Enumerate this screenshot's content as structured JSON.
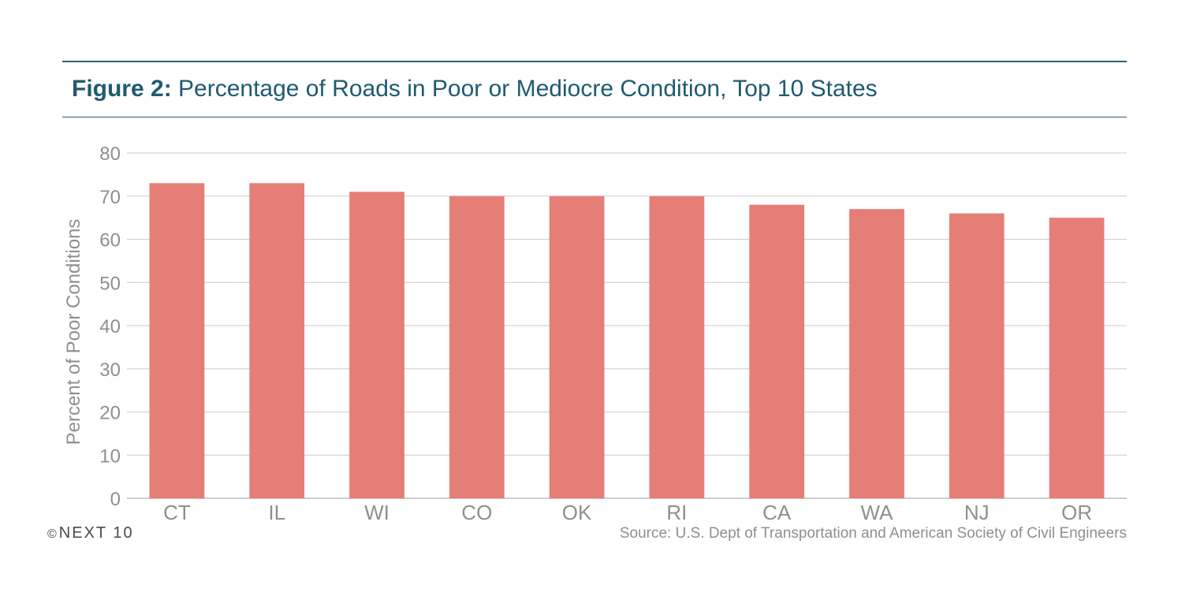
{
  "figure_label": "Figure 2:",
  "chart_data": {
    "type": "bar",
    "title": "Percentage of Roads in Poor or Mediocre Condition, Top 10 States",
    "xlabel": "",
    "ylabel": "Percent of Poor Conditions",
    "categories": [
      "CT",
      "IL",
      "WI",
      "CO",
      "OK",
      "RI",
      "CA",
      "WA",
      "NJ",
      "OR"
    ],
    "values": [
      73,
      73,
      71,
      70,
      70,
      70,
      68,
      67,
      66,
      65
    ],
    "ylim": [
      0,
      80
    ],
    "yticks": [
      "0",
      "10",
      "20",
      "30",
      "40",
      "50",
      "60",
      "70",
      "80"
    ],
    "grid": true,
    "bar_color": "#e57e77"
  },
  "footer": {
    "copyright_symbol": "©",
    "brand": "NEXT 10",
    "source": "Source: U.S. Dept of Transportation and American Society of Civil Engineers"
  }
}
